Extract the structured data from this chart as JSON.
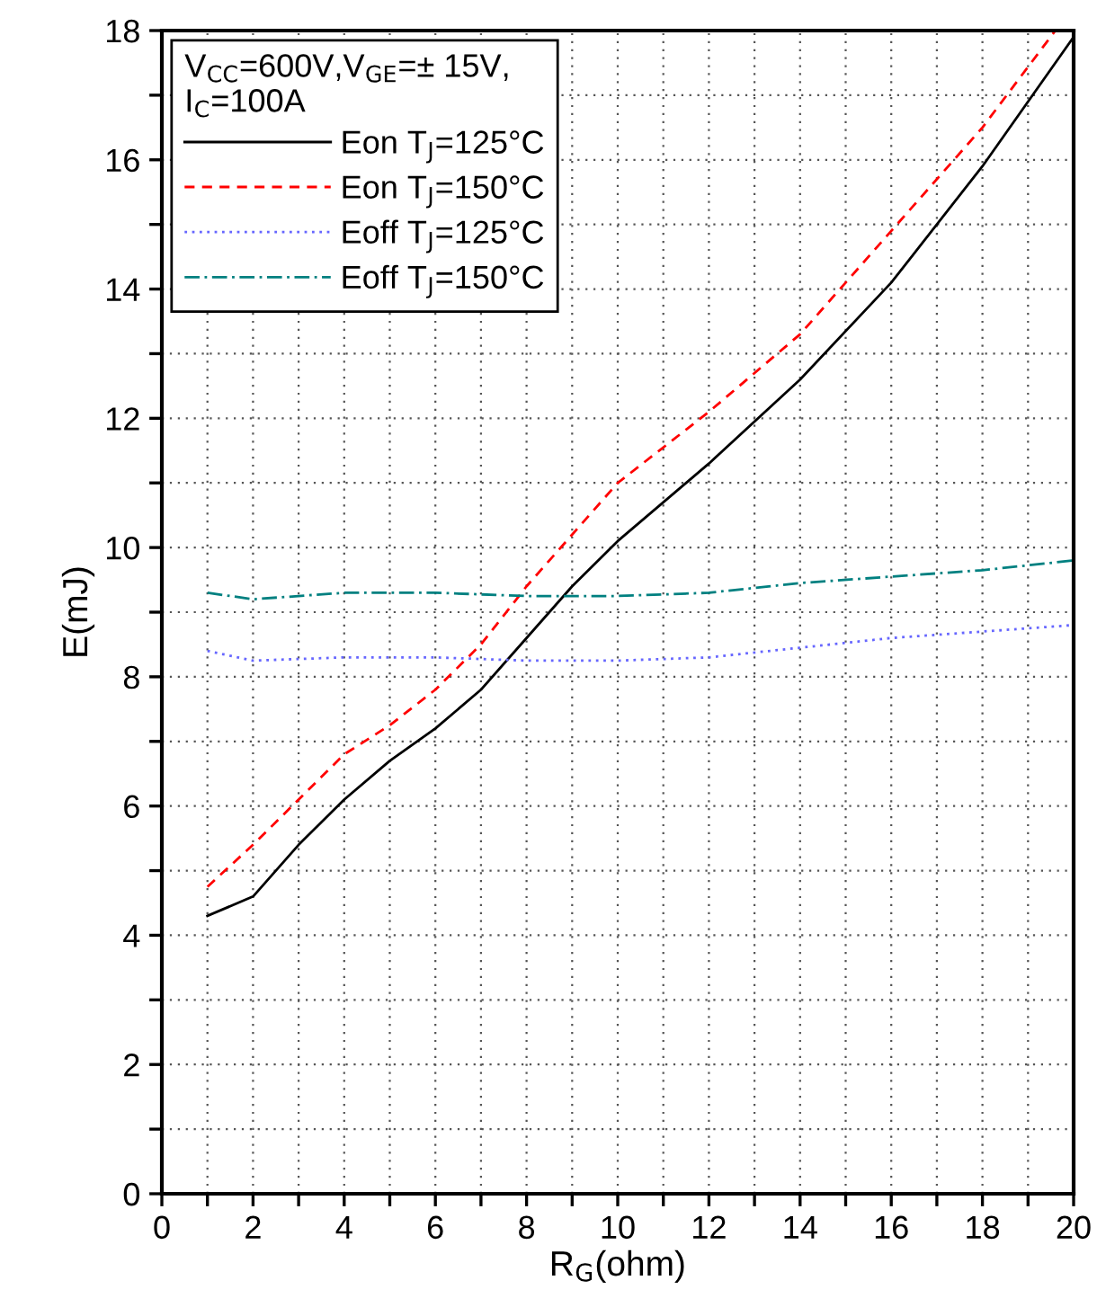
{
  "chart_data": {
    "type": "line",
    "xlabel": "R$_{G}$(ohm)",
    "ylabel": "E(mJ)",
    "legend_title": "V$_{CC}$=600V,V$_{GE}$=± 15V,\nI$_{C}$=100A",
    "legend": "top left",
    "grid": true,
    "marker": "none",
    "xlim": [
      0,
      20
    ],
    "ylim": [
      0,
      18
    ],
    "xticks": [
      0,
      {
        "value": 1,
        "label": null
      },
      2,
      {
        "value": 3,
        "label": null
      },
      4,
      {
        "value": 5,
        "label": null
      },
      6,
      {
        "value": 7,
        "label": null
      },
      8,
      {
        "value": 9,
        "label": null
      },
      10,
      {
        "value": 11,
        "label": null
      },
      12,
      {
        "value": 13,
        "label": null
      },
      14,
      {
        "value": 15,
        "label": null
      },
      16,
      {
        "value": 17,
        "label": null
      },
      18,
      {
        "value": 19,
        "label": null
      },
      20
    ],
    "yticks": [
      0,
      {
        "value": 1,
        "label": null
      },
      2,
      {
        "value": 3,
        "label": null
      },
      4,
      {
        "value": 5,
        "label": null
      },
      6,
      {
        "value": 7,
        "label": null
      },
      8,
      {
        "value": 9,
        "label": null
      },
      10,
      {
        "value": 11,
        "label": null
      },
      12,
      {
        "value": 13,
        "label": null
      },
      14,
      {
        "value": 15,
        "label": null
      },
      16,
      {
        "value": 17,
        "label": null
      },
      18
    ],
    "series": [
      {
        "name": "Eon T$_{J}$=125°C",
        "color": "#000000",
        "line_style": "solid",
        "x": [
          1,
          2,
          3,
          4,
          5,
          6,
          7,
          8,
          9,
          10,
          12,
          14,
          16,
          18,
          20
        ],
        "values": [
          4.3,
          4.6,
          5.4,
          6.1,
          6.7,
          7.2,
          7.8,
          8.6,
          9.4,
          10.1,
          11.3,
          12.6,
          14.1,
          15.9,
          17.9
        ]
      },
      {
        "name": "Eon T$_{J}$=150°C",
        "color": "#ff0000",
        "line_style": "dashed",
        "x": [
          1,
          2,
          3,
          4,
          5,
          6,
          7,
          8,
          9,
          10,
          12,
          14,
          16,
          18,
          19.6
        ],
        "values": [
          4.75,
          5.4,
          6.1,
          6.8,
          7.25,
          7.8,
          8.5,
          9.4,
          10.2,
          11.0,
          12.1,
          13.3,
          14.9,
          16.5,
          18
        ]
      },
      {
        "name": "Eoff T$_{J}$=125°C",
        "color": "#6666ff",
        "line_style": "dotted",
        "x": [
          1,
          2,
          4,
          6,
          8,
          10,
          12,
          14,
          16,
          18,
          20
        ],
        "values": [
          8.4,
          8.25,
          8.3,
          8.3,
          8.25,
          8.25,
          8.3,
          8.45,
          8.6,
          8.7,
          8.8
        ]
      },
      {
        "name": "Eoff T$_{J}$=150°C",
        "color": "#008080",
        "line_style": "dashdot",
        "x": [
          1,
          2,
          4,
          6,
          8,
          10,
          12,
          14,
          16,
          18,
          20
        ],
        "values": [
          9.3,
          9.2,
          9.3,
          9.3,
          9.25,
          9.25,
          9.3,
          9.45,
          9.55,
          9.65,
          9.8
        ]
      }
    ]
  }
}
